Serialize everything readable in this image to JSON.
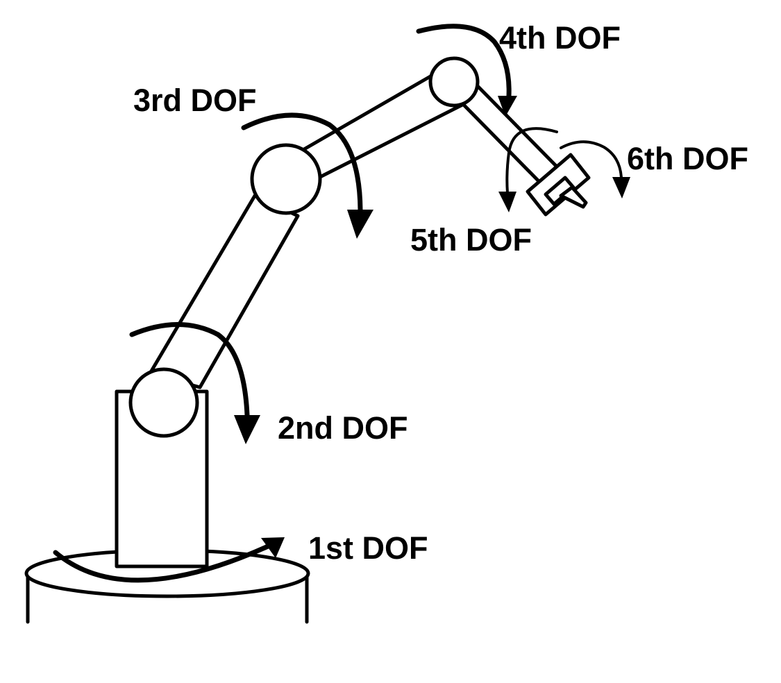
{
  "diagram": {
    "labels": {
      "dof1": "1st DOF",
      "dof2": "2nd DOF",
      "dof3": "3rd DOF",
      "dof4": "4th DOF",
      "dof5": "5th DOF",
      "dof6": "6th DOF"
    },
    "colors": {
      "line": "#000000",
      "fill": "#ffffff",
      "background": "#ffffff"
    }
  }
}
